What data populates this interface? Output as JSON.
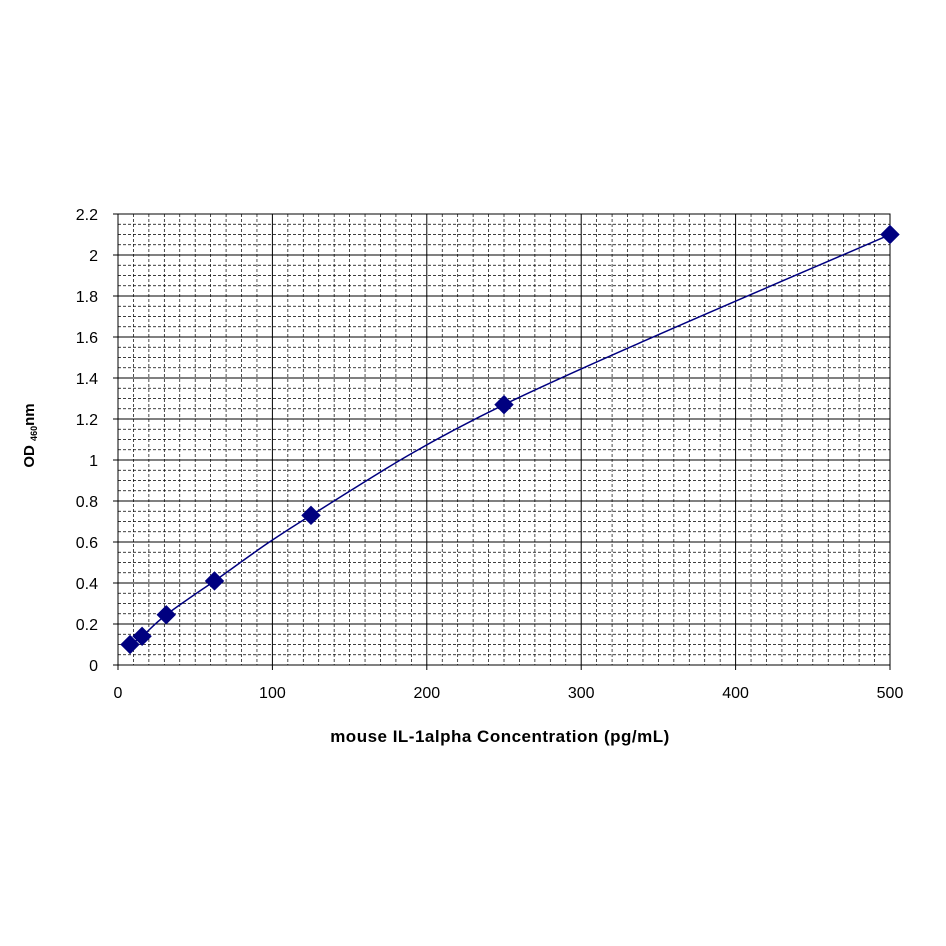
{
  "chart_data": {
    "type": "scatter",
    "title": "",
    "xlabel": "mouse IL-1alpha Concentration (pg/mL)",
    "ylabel": {
      "prefix": "OD ",
      "subscript": "460",
      "suffix": "nm"
    },
    "xlim": [
      0,
      500
    ],
    "ylim": [
      0,
      2.2
    ],
    "x_ticks": [
      "0",
      "100",
      "200",
      "300",
      "400",
      "500"
    ],
    "y_ticks": [
      "0",
      "0.2",
      "0.4",
      "0.6",
      "0.8",
      "1",
      "1.2",
      "1.4",
      "1.6",
      "1.8",
      "2",
      "2.2"
    ],
    "grid": true,
    "legend": "none",
    "series": [
      {
        "marker": "diamond",
        "color": "#000080",
        "fit_line": "smooth",
        "x": [
          7.8,
          15.6,
          31.25,
          62.5,
          125,
          250,
          500
        ],
        "y": [
          0.1,
          0.14,
          0.245,
          0.41,
          0.73,
          1.27,
          2.1
        ]
      }
    ]
  }
}
